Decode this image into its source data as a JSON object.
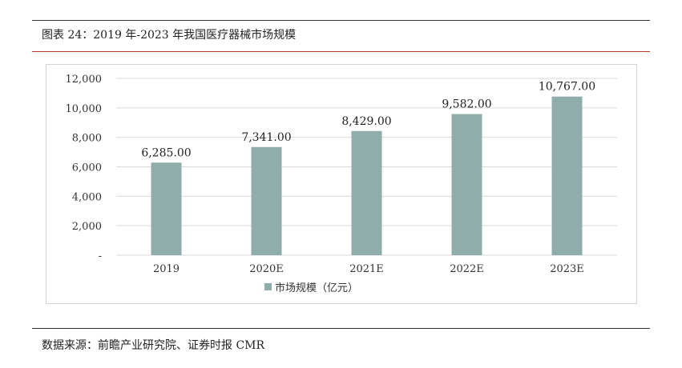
{
  "caption": "图表 24：2019 年-2023 年我国医疗器械市场规模",
  "source": "数据来源：前瞻产业研究院、证券时报 CMR",
  "colors": {
    "bar": "#8fadab",
    "grid": "#d9d9d9",
    "accent_rule": "#b23a2e"
  },
  "chart_data": {
    "type": "bar",
    "categories": [
      "2019",
      "2020E",
      "2021E",
      "2022E",
      "2023E"
    ],
    "series": [
      {
        "name": "市场规模（亿元）",
        "values": [
          6285,
          7341,
          8429,
          9582,
          10767
        ],
        "labels": [
          "6,285.00",
          "7,341.00",
          "8,429.00",
          "9,582.00",
          "10,767.00"
        ]
      }
    ],
    "ylim": [
      0,
      12000
    ],
    "yticks": [
      0,
      2000,
      4000,
      6000,
      8000,
      10000,
      12000
    ],
    "ytick_labels": [
      "-",
      "2,000",
      "4,000",
      "6,000",
      "8,000",
      "10,000",
      "12,000"
    ],
    "grid": true,
    "legend_position": "bottom"
  }
}
